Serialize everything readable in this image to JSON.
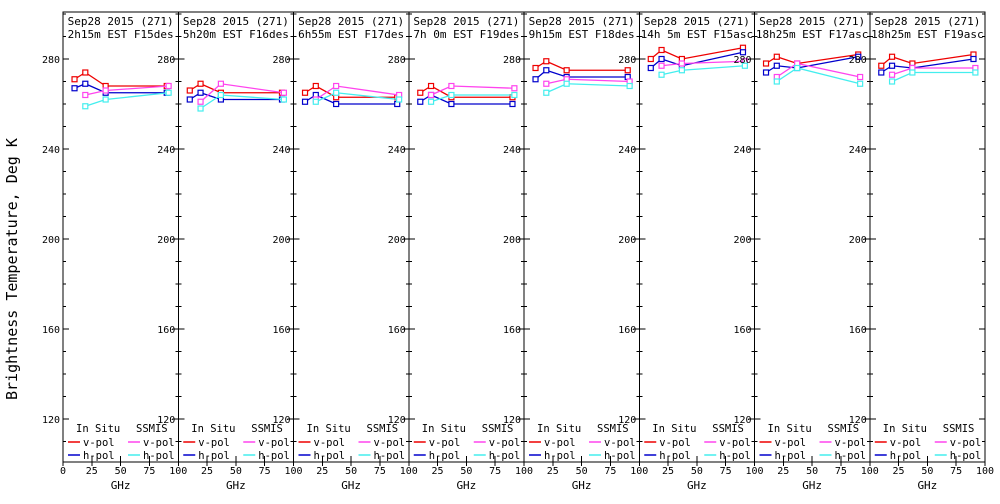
{
  "figure": {
    "ylabel": "Brightness Temperature, Deg K",
    "xlabel": "GHz",
    "background": "#ffffff",
    "frame_color": "#000000",
    "yticks": [
      280,
      240,
      200,
      160,
      120
    ],
    "xticks": [
      0,
      25,
      50,
      75,
      100
    ],
    "legend": {
      "col1_header": "In Situ",
      "col2_header": "SSMIS",
      "row1_label": "v-pol",
      "row2_label": "h-pol"
    },
    "colors": {
      "in_situ_v": "#ee0000",
      "in_situ_h": "#0000cc",
      "ssmis_v": "#ff44ee",
      "ssmis_h": "#44eeee"
    }
  },
  "chart_data": [
    {
      "type": "line",
      "title": "Sep28 2015 (271)",
      "subtitle": "2h15m EST F15des",
      "xlabel": "GHz",
      "xlim": [
        0,
        100
      ],
      "ylim": [
        100,
        300
      ],
      "series": [
        {
          "name": "In Situ v-pol",
          "color_key": "in_situ_v",
          "x": [
            10,
            19.35,
            37,
            90
          ],
          "y": [
            271,
            274,
            268,
            268
          ]
        },
        {
          "name": "In Situ h-pol",
          "color_key": "in_situ_h",
          "x": [
            10,
            19.35,
            37,
            90
          ],
          "y": [
            267,
            269,
            265,
            265
          ]
        },
        {
          "name": "SSMIS v-pol",
          "color_key": "ssmis_v",
          "x": [
            19.35,
            37,
            91.655
          ],
          "y": [
            264,
            266,
            268
          ]
        },
        {
          "name": "SSMIS h-pol",
          "color_key": "ssmis_h",
          "x": [
            19.35,
            37,
            91.655
          ],
          "y": [
            259,
            262,
            265
          ]
        }
      ]
    },
    {
      "type": "line",
      "title": "Sep28 2015 (271)",
      "subtitle": "5h20m EST F16des",
      "xlabel": "GHz",
      "xlim": [
        0,
        100
      ],
      "ylim": [
        100,
        300
      ],
      "series": [
        {
          "name": "In Situ v-pol",
          "color_key": "in_situ_v",
          "x": [
            10,
            19.35,
            37,
            90
          ],
          "y": [
            266,
            269,
            265,
            265
          ]
        },
        {
          "name": "In Situ h-pol",
          "color_key": "in_situ_h",
          "x": [
            10,
            19.35,
            37,
            90
          ],
          "y": [
            262,
            265,
            262,
            262
          ]
        },
        {
          "name": "SSMIS v-pol",
          "color_key": "ssmis_v",
          "x": [
            19.35,
            37,
            91.655
          ],
          "y": [
            261,
            269,
            265
          ]
        },
        {
          "name": "SSMIS h-pol",
          "color_key": "ssmis_h",
          "x": [
            19.35,
            37,
            91.655
          ],
          "y": [
            258,
            264,
            262
          ]
        }
      ]
    },
    {
      "type": "line",
      "title": "Sep28 2015 (271)",
      "subtitle": "6h55m EST F17des",
      "xlabel": "GHz",
      "xlim": [
        0,
        100
      ],
      "ylim": [
        100,
        300
      ],
      "series": [
        {
          "name": "In Situ v-pol",
          "color_key": "in_situ_v",
          "x": [
            10,
            19.35,
            37,
            90
          ],
          "y": [
            265,
            268,
            263,
            263
          ]
        },
        {
          "name": "In Situ h-pol",
          "color_key": "in_situ_h",
          "x": [
            10,
            19.35,
            37,
            90
          ],
          "y": [
            261,
            264,
            260,
            260
          ]
        },
        {
          "name": "SSMIS v-pol",
          "color_key": "ssmis_v",
          "x": [
            19.35,
            37,
            91.655
          ],
          "y": [
            262,
            268,
            264
          ]
        },
        {
          "name": "SSMIS h-pol",
          "color_key": "ssmis_h",
          "x": [
            19.35,
            37,
            91.655
          ],
          "y": [
            261,
            265,
            262
          ]
        }
      ]
    },
    {
      "type": "line",
      "title": "Sep28 2015 (271)",
      "subtitle": "7h 0m EST F19des",
      "xlabel": "GHz",
      "xlim": [
        0,
        100
      ],
      "ylim": [
        100,
        300
      ],
      "series": [
        {
          "name": "In Situ v-pol",
          "color_key": "in_situ_v",
          "x": [
            10,
            19.35,
            37,
            90
          ],
          "y": [
            265,
            268,
            263,
            263
          ]
        },
        {
          "name": "In Situ h-pol",
          "color_key": "in_situ_h",
          "x": [
            10,
            19.35,
            37,
            90
          ],
          "y": [
            261,
            264,
            260,
            260
          ]
        },
        {
          "name": "SSMIS v-pol",
          "color_key": "ssmis_v",
          "x": [
            19.35,
            37,
            91.655
          ],
          "y": [
            264,
            268,
            267
          ]
        },
        {
          "name": "SSMIS h-pol",
          "color_key": "ssmis_h",
          "x": [
            19.35,
            37,
            91.655
          ],
          "y": [
            261,
            264,
            264
          ]
        }
      ]
    },
    {
      "type": "line",
      "title": "Sep28 2015 (271)",
      "subtitle": "9h15m EST F18des",
      "xlabel": "GHz",
      "xlim": [
        0,
        100
      ],
      "ylim": [
        100,
        300
      ],
      "series": [
        {
          "name": "In Situ v-pol",
          "color_key": "in_situ_v",
          "x": [
            10,
            19.35,
            37,
            90
          ],
          "y": [
            276,
            279,
            275,
            275
          ]
        },
        {
          "name": "In Situ h-pol",
          "color_key": "in_situ_h",
          "x": [
            10,
            19.35,
            37,
            90
          ],
          "y": [
            271,
            275,
            272,
            272
          ]
        },
        {
          "name": "SSMIS v-pol",
          "color_key": "ssmis_v",
          "x": [
            19.35,
            37,
            91.655
          ],
          "y": [
            269,
            271,
            270
          ]
        },
        {
          "name": "SSMIS h-pol",
          "color_key": "ssmis_h",
          "x": [
            19.35,
            37,
            91.655
          ],
          "y": [
            265,
            269,
            268
          ]
        }
      ]
    },
    {
      "type": "line",
      "title": "Sep28 2015 (271)",
      "subtitle": "14h 5m EST F15asc",
      "xlabel": "GHz",
      "xlim": [
        0,
        100
      ],
      "ylim": [
        100,
        300
      ],
      "series": [
        {
          "name": "In Situ v-pol",
          "color_key": "in_situ_v",
          "x": [
            10,
            19.35,
            37,
            90
          ],
          "y": [
            280,
            284,
            280,
            285
          ]
        },
        {
          "name": "In Situ h-pol",
          "color_key": "in_situ_h",
          "x": [
            10,
            19.35,
            37,
            90
          ],
          "y": [
            276,
            280,
            277,
            283
          ]
        },
        {
          "name": "SSMIS v-pol",
          "color_key": "ssmis_v",
          "x": [
            19.35,
            37,
            91.655
          ],
          "y": [
            277,
            278,
            279
          ]
        },
        {
          "name": "SSMIS h-pol",
          "color_key": "ssmis_h",
          "x": [
            19.35,
            37,
            91.655
          ],
          "y": [
            273,
            275,
            277
          ]
        }
      ]
    },
    {
      "type": "line",
      "title": "Sep28 2015 (271)",
      "subtitle": "18h25m EST F17asc",
      "xlabel": "GHz",
      "xlim": [
        0,
        100
      ],
      "ylim": [
        100,
        300
      ],
      "series": [
        {
          "name": "In Situ v-pol",
          "color_key": "in_situ_v",
          "x": [
            10,
            19.35,
            37,
            90
          ],
          "y": [
            278,
            281,
            278,
            282
          ]
        },
        {
          "name": "In Situ h-pol",
          "color_key": "in_situ_h",
          "x": [
            10,
            19.35,
            37,
            90
          ],
          "y": [
            274,
            277,
            276,
            281
          ]
        },
        {
          "name": "SSMIS v-pol",
          "color_key": "ssmis_v",
          "x": [
            19.35,
            37,
            91.655
          ],
          "y": [
            272,
            278,
            272
          ]
        },
        {
          "name": "SSMIS h-pol",
          "color_key": "ssmis_h",
          "x": [
            19.35,
            37,
            91.655
          ],
          "y": [
            270,
            276,
            269
          ]
        }
      ]
    },
    {
      "type": "line",
      "title": "Sep28 2015 (271)",
      "subtitle": "18h25m EST F19asc",
      "xlabel": "GHz",
      "xlim": [
        0,
        100
      ],
      "ylim": [
        100,
        300
      ],
      "series": [
        {
          "name": "In Situ v-pol",
          "color_key": "in_situ_v",
          "x": [
            10,
            19.35,
            37,
            90
          ],
          "y": [
            277,
            281,
            278,
            282
          ]
        },
        {
          "name": "In Situ h-pol",
          "color_key": "in_situ_h",
          "x": [
            10,
            19.35,
            37,
            90
          ],
          "y": [
            274,
            277,
            276,
            280
          ]
        },
        {
          "name": "SSMIS v-pol",
          "color_key": "ssmis_v",
          "x": [
            19.35,
            37,
            91.655
          ],
          "y": [
            273,
            276,
            276
          ]
        },
        {
          "name": "SSMIS h-pol",
          "color_key": "ssmis_h",
          "x": [
            19.35,
            37,
            91.655
          ],
          "y": [
            270,
            274,
            274
          ]
        }
      ]
    }
  ]
}
